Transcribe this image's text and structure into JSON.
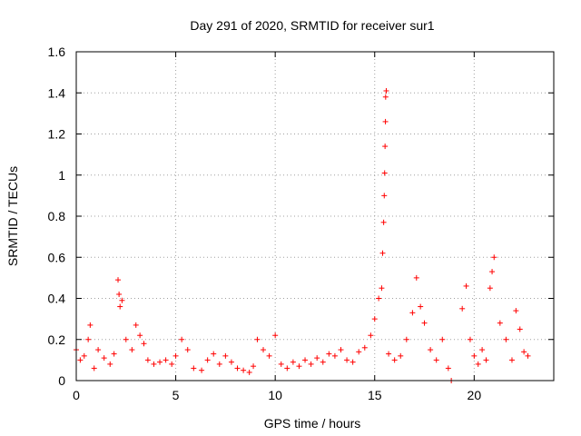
{
  "chart_data": {
    "type": "scatter",
    "title": "Day 291 of 2020, SRMTID for receiver sur1",
    "xlabel": "GPS time / hours",
    "ylabel": "SRMTID / TECUs",
    "xlim": [
      0,
      24
    ],
    "ylim": [
      0,
      1.6
    ],
    "xticks": [
      0,
      5,
      10,
      15,
      20
    ],
    "xtick_labels": [
      "0",
      "5",
      "10",
      "15",
      "20"
    ],
    "yticks": [
      0,
      0.2,
      0.4,
      0.6,
      0.8,
      1.0,
      1.2,
      1.4,
      1.6
    ],
    "ytick_labels": [
      "0",
      "0.2",
      "0.4",
      "0.6",
      "0.8",
      "1",
      "1.2",
      "1.4",
      "1.6"
    ],
    "grid": true,
    "marker": "+",
    "color": "#ff0000",
    "series": [
      {
        "name": "SRMTID",
        "points": [
          [
            0.0,
            0.15
          ],
          [
            0.2,
            0.1
          ],
          [
            0.4,
            0.12
          ],
          [
            0.6,
            0.2
          ],
          [
            0.7,
            0.27
          ],
          [
            0.9,
            0.06
          ],
          [
            1.1,
            0.15
          ],
          [
            1.4,
            0.11
          ],
          [
            1.7,
            0.08
          ],
          [
            1.9,
            0.13
          ],
          [
            2.1,
            0.49
          ],
          [
            2.15,
            0.42
          ],
          [
            2.2,
            0.36
          ],
          [
            2.3,
            0.39
          ],
          [
            2.5,
            0.2
          ],
          [
            2.8,
            0.15
          ],
          [
            3.0,
            0.27
          ],
          [
            3.2,
            0.22
          ],
          [
            3.4,
            0.18
          ],
          [
            3.6,
            0.1
          ],
          [
            3.9,
            0.08
          ],
          [
            4.2,
            0.09
          ],
          [
            4.5,
            0.1
          ],
          [
            4.8,
            0.08
          ],
          [
            5.0,
            0.12
          ],
          [
            5.3,
            0.2
          ],
          [
            5.6,
            0.15
          ],
          [
            5.9,
            0.06
          ],
          [
            6.3,
            0.05
          ],
          [
            6.6,
            0.1
          ],
          [
            6.9,
            0.13
          ],
          [
            7.2,
            0.08
          ],
          [
            7.5,
            0.12
          ],
          [
            7.8,
            0.09
          ],
          [
            8.1,
            0.06
          ],
          [
            8.4,
            0.05
          ],
          [
            8.7,
            0.04
          ],
          [
            8.9,
            0.07
          ],
          [
            9.1,
            0.2
          ],
          [
            9.4,
            0.15
          ],
          [
            9.7,
            0.12
          ],
          [
            10.0,
            0.22
          ],
          [
            10.3,
            0.08
          ],
          [
            10.6,
            0.06
          ],
          [
            10.9,
            0.09
          ],
          [
            11.2,
            0.07
          ],
          [
            11.5,
            0.1
          ],
          [
            11.8,
            0.08
          ],
          [
            12.1,
            0.11
          ],
          [
            12.4,
            0.09
          ],
          [
            12.7,
            0.13
          ],
          [
            13.0,
            0.12
          ],
          [
            13.3,
            0.15
          ],
          [
            13.6,
            0.1
          ],
          [
            13.9,
            0.09
          ],
          [
            14.2,
            0.14
          ],
          [
            14.5,
            0.16
          ],
          [
            14.8,
            0.22
          ],
          [
            15.0,
            0.3
          ],
          [
            15.2,
            0.4
          ],
          [
            15.35,
            0.45
          ],
          [
            15.4,
            0.62
          ],
          [
            15.45,
            0.77
          ],
          [
            15.48,
            0.9
          ],
          [
            15.5,
            1.01
          ],
          [
            15.52,
            1.14
          ],
          [
            15.54,
            1.26
          ],
          [
            15.55,
            1.38
          ],
          [
            15.58,
            1.41
          ],
          [
            15.7,
            0.13
          ],
          [
            16.0,
            0.1
          ],
          [
            16.3,
            0.12
          ],
          [
            16.6,
            0.2
          ],
          [
            16.9,
            0.33
          ],
          [
            17.1,
            0.5
          ],
          [
            17.3,
            0.36
          ],
          [
            17.5,
            0.28
          ],
          [
            17.8,
            0.15
          ],
          [
            18.1,
            0.1
          ],
          [
            18.4,
            0.2
          ],
          [
            18.7,
            0.06
          ],
          [
            18.85,
            0.0
          ],
          [
            19.4,
            0.35
          ],
          [
            19.6,
            0.46
          ],
          [
            19.8,
            0.2
          ],
          [
            20.0,
            0.12
          ],
          [
            20.2,
            0.08
          ],
          [
            20.4,
            0.15
          ],
          [
            20.6,
            0.1
          ],
          [
            20.8,
            0.45
          ],
          [
            20.9,
            0.53
          ],
          [
            21.0,
            0.6
          ],
          [
            21.3,
            0.28
          ],
          [
            21.6,
            0.2
          ],
          [
            21.9,
            0.1
          ],
          [
            22.1,
            0.34
          ],
          [
            22.3,
            0.25
          ],
          [
            22.5,
            0.14
          ],
          [
            22.7,
            0.12
          ]
        ]
      }
    ]
  }
}
